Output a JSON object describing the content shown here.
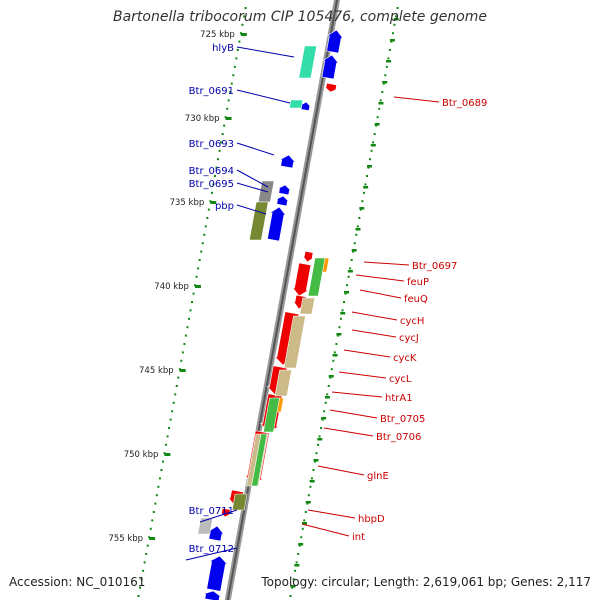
{
  "title": "Bartonella tribocorum CIP 105476, complete genome",
  "footer": {
    "accession": "Accession: NC_010161",
    "topology": "Topology: circular; Length: 2,619,061 bp; Genes: 2,117"
  },
  "ruler": [
    "725 kbp",
    "730 kbp",
    "735 kbp",
    "740 kbp",
    "745 kbp",
    "750 kbp",
    "755 kbp"
  ],
  "left_labels": [
    "hlyB",
    "Btr_0691",
    "Btr_0693",
    "Btr_0694",
    "Btr_0695",
    "pbp",
    "Btr_0711",
    "Btr_0712"
  ],
  "right_labels": [
    "Btr_0689",
    "Btr_0697",
    "feuP",
    "feuQ",
    "cycH",
    "cycJ",
    "cycK",
    "cycL",
    "htrA1",
    "Btr_0705",
    "Btr_0706",
    "glnE",
    "hbpD",
    "int"
  ],
  "colors": {
    "plus_strand": "#0000ee",
    "minus_strand": "#ee0000",
    "left_label": "#0000aa",
    "right_label": "#cc0000",
    "ruler_tick": "#118811",
    "cog_teal": "#33ddaa",
    "cog_green": "#44bb44",
    "cog_olive": "#778833",
    "cog_tan": "#ccbb88",
    "cog_gray": "#888888",
    "cog_orange": "#ff9900"
  }
}
